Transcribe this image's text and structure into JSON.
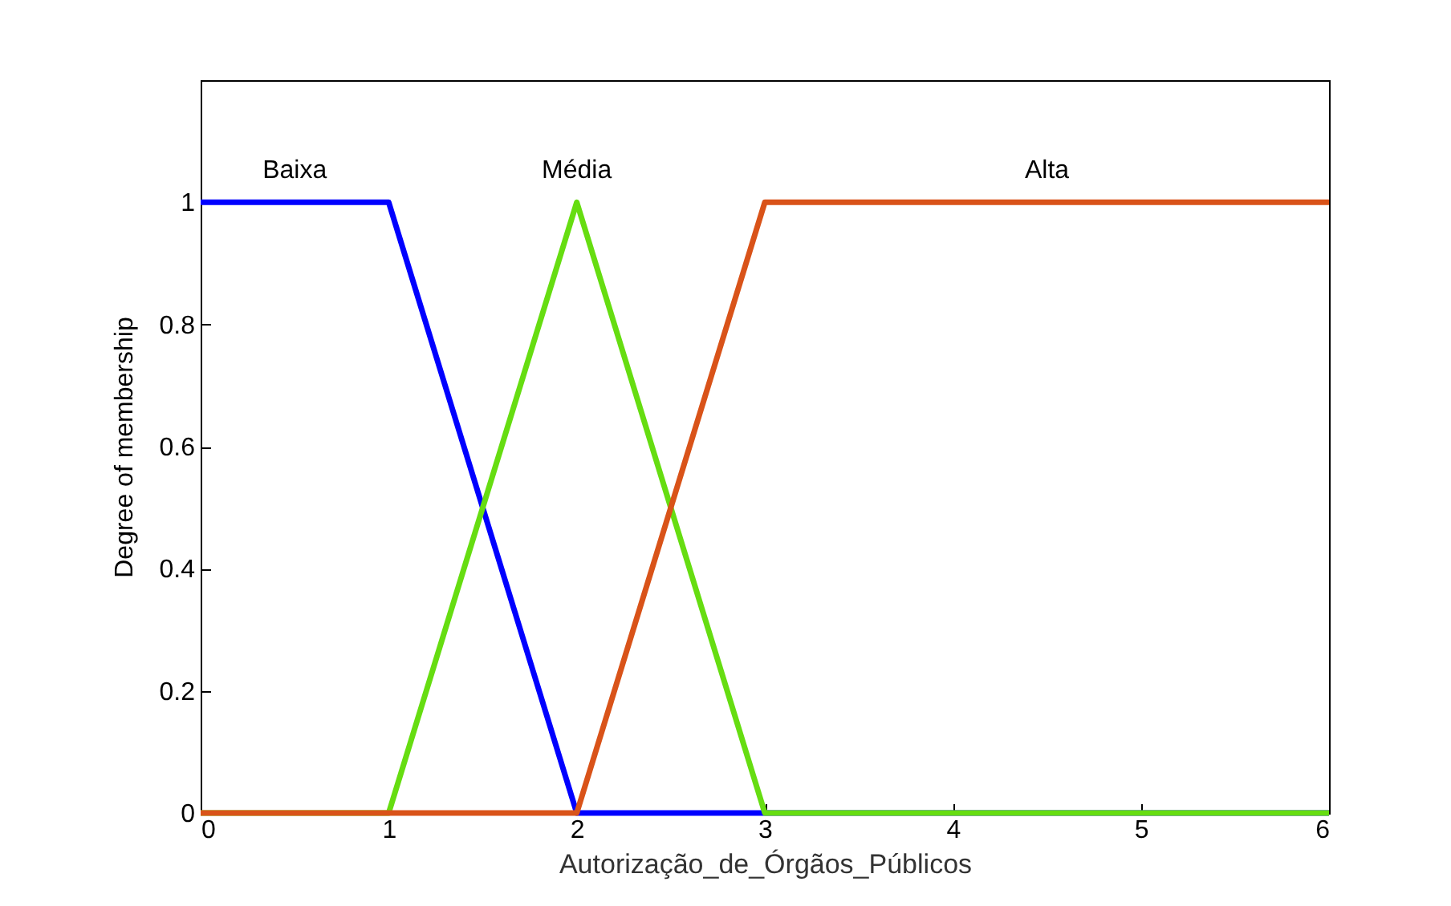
{
  "chart_data": {
    "type": "line",
    "xlabel": "Autorização_de_Órgãos_Públicos",
    "ylabel": "Degree of membership",
    "xlim": [
      0,
      6
    ],
    "xticks": [
      0,
      1,
      2,
      3,
      4,
      5,
      6
    ],
    "ylim": [
      0,
      1.2
    ],
    "yticks": [
      0,
      0.2,
      0.4,
      0.6,
      0.8,
      1
    ],
    "grid": false,
    "legend": false,
    "series": [
      {
        "name": "Baixa",
        "color": "#0000ff",
        "x": [
          0,
          1,
          2,
          6
        ],
        "values": [
          1,
          1,
          0,
          0
        ]
      },
      {
        "name": "Média",
        "color": "#66dd11",
        "x": [
          0,
          1,
          2,
          3,
          6
        ],
        "values": [
          0,
          0,
          1,
          0,
          0
        ]
      },
      {
        "name": "Alta",
        "color": "#d95319",
        "x": [
          0,
          2,
          3,
          6
        ],
        "values": [
          0,
          0,
          1,
          1
        ]
      }
    ]
  }
}
